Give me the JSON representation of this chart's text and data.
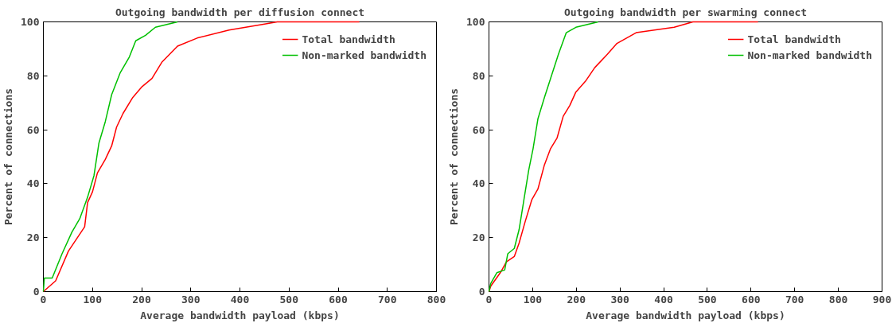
{
  "chart_data": [
    {
      "type": "line",
      "title": "Outgoing bandwidth per diffusion connect",
      "xlabel": "Average bandwidth payload (kbps)",
      "ylabel": "Percent of connections",
      "xlim": [
        0,
        800
      ],
      "xticks": [
        0,
        100,
        200,
        300,
        400,
        500,
        600,
        700,
        800
      ],
      "ylim": [
        0,
        100
      ],
      "yticks": [
        0,
        20,
        40,
        60,
        80,
        100
      ],
      "grid": false,
      "legend": "top right",
      "line_style": "solid",
      "series": [
        {
          "name": "Total bandwidth",
          "color": "#ff0000",
          "x": [
            0,
            25,
            51,
            84,
            90,
            100,
            110,
            126,
            139,
            149,
            162,
            182,
            201,
            221,
            241,
            273,
            313,
            378,
            443,
            476,
            643
          ],
          "values": [
            0,
            4,
            15,
            24,
            33,
            37,
            44,
            49,
            54,
            61,
            66,
            72,
            76,
            79,
            85,
            91,
            94,
            97,
            99,
            100,
            100
          ]
        },
        {
          "name": "Non-marked bandwidth",
          "color": "#00c000",
          "x": [
            0,
            2,
            18,
            38,
            58,
            74,
            90,
            103,
            113,
            126,
            139,
            156,
            175,
            188,
            208,
            228,
            273
          ],
          "values": [
            0,
            5,
            5,
            14,
            22,
            27,
            35,
            43,
            55,
            63,
            73,
            81,
            87,
            93,
            95,
            98,
            100
          ]
        }
      ]
    },
    {
      "type": "line",
      "title": "Outgoing bandwidth per swarming connect",
      "xlabel": "Average bandwidth payload (kbps)",
      "ylabel": "Percent of connections",
      "xlim": [
        0,
        900
      ],
      "xticks": [
        0,
        100,
        200,
        300,
        400,
        500,
        600,
        700,
        800,
        900
      ],
      "ylim": [
        0,
        100
      ],
      "yticks": [
        0,
        20,
        40,
        60,
        80,
        100
      ],
      "grid": false,
      "legend": "top right",
      "line_style": "solid",
      "series": [
        {
          "name": "Total bandwidth",
          "color": "#ff0000",
          "x": [
            0,
            4,
            26,
            40,
            58,
            69,
            83,
            98,
            112,
            127,
            141,
            156,
            170,
            185,
            199,
            221,
            242,
            271,
            293,
            337,
            424,
            467,
            616
          ],
          "values": [
            0,
            2,
            7,
            11,
            13,
            18,
            26,
            34,
            38,
            47,
            53,
            57,
            65,
            69,
            74,
            78,
            83,
            88,
            92,
            96,
            98,
            100,
            100
          ]
        },
        {
          "name": "Non-marked bandwidth",
          "color": "#00c000",
          "x": [
            0,
            4,
            18,
            36,
            43,
            58,
            69,
            80,
            91,
            101,
            112,
            127,
            141,
            159,
            177,
            199,
            250
          ],
          "values": [
            0,
            3,
            7,
            8,
            14,
            16,
            23,
            34,
            45,
            53,
            64,
            72,
            79,
            88,
            96,
            98,
            100
          ]
        }
      ]
    }
  ]
}
